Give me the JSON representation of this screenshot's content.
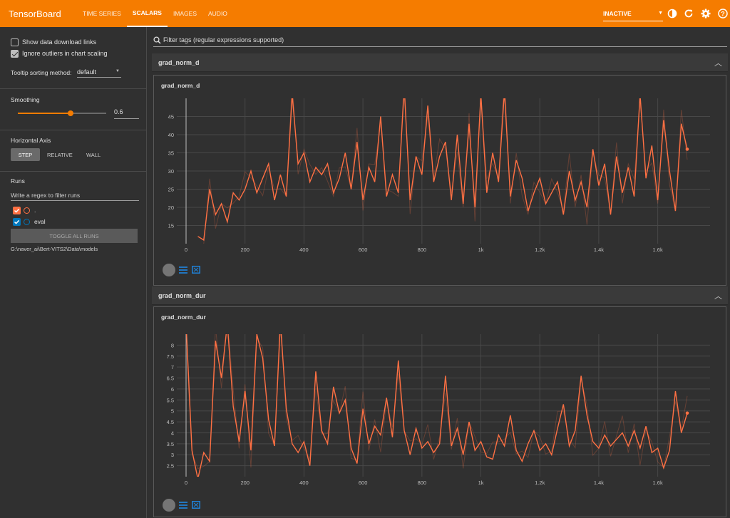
{
  "topbar": {
    "brand": "TensorBoard",
    "tabs": [
      {
        "label": "TIME SERIES"
      },
      {
        "label": "SCALARS"
      },
      {
        "label": "IMAGES"
      },
      {
        "label": "AUDIO"
      }
    ],
    "active_tab": "SCALARS",
    "status": "INACTIVE",
    "icons": [
      "theme-toggle-icon",
      "refresh-icon",
      "settings-icon",
      "help-icon"
    ],
    "color": "#f57c00"
  },
  "sidebar": {
    "show_download_links": {
      "label": "Show data download links",
      "checked": false
    },
    "ignore_outliers": {
      "label": "Ignore outliers in chart scaling",
      "checked": true
    },
    "tooltip_sorting": {
      "label": "Tooltip sorting method:",
      "value": "default"
    },
    "smoothing": {
      "label": "Smoothing",
      "value": "0.6",
      "slider_fraction": 0.6
    },
    "horizontal_axis": {
      "label": "Horizontal Axis",
      "options": [
        "STEP",
        "RELATIVE",
        "WALL"
      ],
      "selected": "STEP"
    },
    "runs": {
      "label": "Runs",
      "filter_placeholder": "Write a regex to filter runs",
      "items": [
        {
          "name": ".",
          "checked": true,
          "color": "#ff7043"
        },
        {
          "name": "eval",
          "checked": true,
          "color": "#0077bb"
        }
      ],
      "toggle_all": "TOGGLE ALL RUNS",
      "logdir": "G:\\naver_ai\\Bert-VITS2\\Data\\models"
    }
  },
  "main": {
    "filter_placeholder": "Filter tags (regular expressions supported)",
    "panels": [
      {
        "header": "grad_norm_d",
        "chart_title": "grad_norm_d"
      },
      {
        "header": "grad_norm_dur",
        "chart_title": "grad_norm_dur"
      }
    ]
  },
  "chart_data": [
    {
      "type": "line",
      "title": "grad_norm_d",
      "xlabel": "",
      "ylabel": "",
      "xlim": [
        0,
        1700
      ],
      "ylim": [
        10,
        50
      ],
      "x_ticks": [
        "0",
        "200",
        "400",
        "600",
        "800",
        "1k",
        "1.2k",
        "1.4k",
        "1.6k"
      ],
      "y_ticks": [
        "15",
        "20",
        "25",
        "30",
        "35",
        "40",
        "45"
      ],
      "grid": true,
      "series": [
        {
          "name": ".",
          "color": "#ff7043",
          "smoothed": true,
          "x": [
            40,
            60,
            80,
            100,
            120,
            140,
            160,
            180,
            200,
            220,
            240,
            260,
            280,
            300,
            320,
            340,
            360,
            380,
            400,
            420,
            440,
            460,
            480,
            500,
            520,
            540,
            560,
            580,
            600,
            620,
            640,
            660,
            680,
            700,
            720,
            740,
            760,
            780,
            800,
            820,
            840,
            860,
            880,
            900,
            920,
            940,
            960,
            980,
            1000,
            1020,
            1040,
            1060,
            1080,
            1100,
            1120,
            1140,
            1160,
            1180,
            1200,
            1220,
            1240,
            1260,
            1280,
            1300,
            1320,
            1340,
            1360,
            1380,
            1400,
            1420,
            1440,
            1460,
            1480,
            1500,
            1520,
            1540,
            1560,
            1580,
            1600,
            1620,
            1640,
            1660,
            1680,
            1700
          ],
          "y": [
            12,
            11,
            25,
            18,
            21,
            16,
            24,
            22,
            25,
            30,
            24,
            28,
            32,
            22,
            29,
            23,
            51,
            32,
            35,
            27,
            31,
            29,
            32,
            24,
            28,
            35,
            25,
            38,
            22,
            31,
            27,
            45,
            23,
            29,
            24,
            53,
            22,
            34,
            29,
            48,
            27,
            34,
            38,
            22,
            40,
            21,
            43,
            20,
            51,
            24,
            35,
            27,
            52,
            23,
            33,
            28,
            19,
            24,
            28,
            21,
            24,
            27,
            18,
            30,
            22,
            27,
            20,
            36,
            26,
            32,
            18,
            34,
            24,
            31,
            23,
            51,
            28,
            37,
            22,
            44,
            30,
            19,
            43,
            36
          ]
        }
      ]
    },
    {
      "type": "line",
      "title": "grad_norm_dur",
      "xlabel": "",
      "ylabel": "",
      "xlim": [
        0,
        1700
      ],
      "ylim": [
        2,
        8.5
      ],
      "x_ticks": [
        "0",
        "200",
        "400",
        "600",
        "800",
        "1k",
        "1.2k",
        "1.4k",
        "1.6k"
      ],
      "y_ticks": [
        "2.5",
        "3",
        "3.5",
        "4",
        "4.5",
        "5",
        "5.5",
        "6",
        "6.5",
        "7",
        "7.5",
        "8"
      ],
      "grid": true,
      "series": [
        {
          "name": ".",
          "color": "#ff7043",
          "smoothed": true,
          "x": [
            0,
            20,
            40,
            60,
            80,
            100,
            120,
            140,
            160,
            180,
            200,
            220,
            240,
            260,
            280,
            300,
            320,
            340,
            360,
            380,
            400,
            420,
            440,
            460,
            480,
            500,
            520,
            540,
            560,
            580,
            600,
            620,
            640,
            660,
            680,
            700,
            720,
            740,
            760,
            780,
            800,
            820,
            840,
            860,
            880,
            900,
            920,
            940,
            960,
            980,
            1000,
            1020,
            1040,
            1060,
            1080,
            1100,
            1120,
            1140,
            1160,
            1180,
            1200,
            1220,
            1240,
            1260,
            1280,
            1300,
            1320,
            1340,
            1360,
            1380,
            1400,
            1420,
            1440,
            1460,
            1480,
            1500,
            1520,
            1540,
            1560,
            1580,
            1600,
            1620,
            1640,
            1660,
            1680,
            1700
          ],
          "y": [
            9,
            3.2,
            1.9,
            3.1,
            2.7,
            8.2,
            6.5,
            9,
            5.2,
            3.6,
            5.9,
            3.2,
            8.5,
            7.4,
            4.6,
            3.4,
            9,
            5.1,
            3.5,
            3.1,
            3.6,
            2.5,
            6.8,
            4.1,
            3.5,
            6.1,
            4.9,
            5.5,
            3.3,
            2.6,
            5.1,
            3.5,
            4.3,
            3.9,
            5.6,
            3.8,
            7.3,
            4.1,
            3.0,
            4.2,
            3.3,
            3.6,
            3.1,
            3.5,
            6.6,
            3.4,
            4.2,
            3.0,
            4.5,
            3.2,
            3.6,
            2.9,
            2.8,
            3.9,
            3.4,
            4.8,
            3.2,
            2.7,
            3.5,
            4.1,
            3.2,
            3.5,
            3.0,
            4.2,
            5.3,
            3.4,
            4.1,
            6.6,
            4.8,
            3.6,
            3.3,
            3.9,
            3.4,
            3.7,
            4.0,
            3.4,
            4.1,
            3.3,
            4.3,
            3.1,
            3.3,
            2.4,
            3.2,
            5.9,
            4.0,
            4.9
          ]
        }
      ]
    }
  ]
}
